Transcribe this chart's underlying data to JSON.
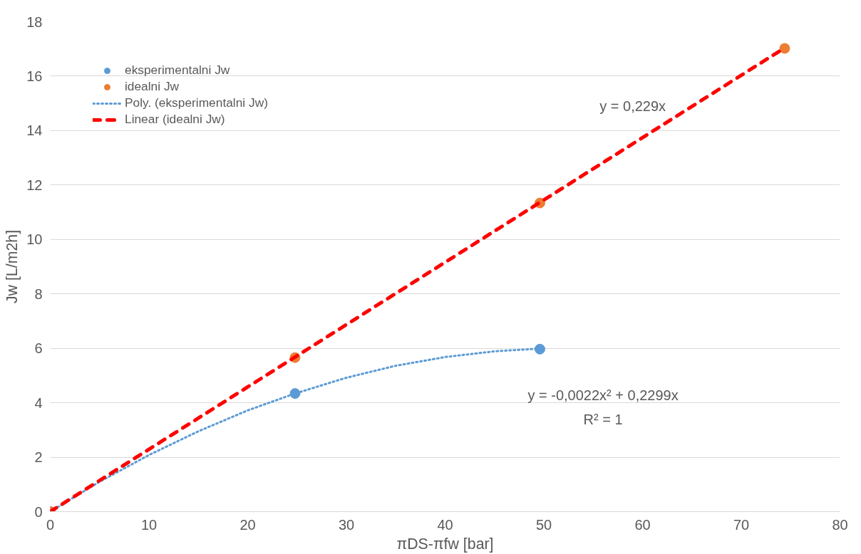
{
  "chart_data": {
    "type": "scatter",
    "xlabel": "πDS-πfw [bar]",
    "ylabel": "Jw [L/m2h]",
    "xlim": [
      0,
      80
    ],
    "xticks": [
      0,
      10,
      20,
      30,
      40,
      50,
      60,
      70,
      80
    ],
    "ylim": [
      0,
      18
    ],
    "yticks": [
      0,
      2,
      4,
      6,
      8,
      10,
      12,
      14,
      16,
      18
    ],
    "grid": "y",
    "legend": "top left",
    "series": [
      {
        "name": "eksperimentalni Jw",
        "marker": "circle",
        "color": "#5b9bd5",
        "x": [
          0,
          24.8,
          49.6
        ],
        "values": [
          0,
          4.34,
          5.97
        ]
      },
      {
        "name": "idealni Jw",
        "marker": "circle",
        "color": "#ed7d31",
        "x": [
          0,
          24.8,
          49.6,
          74.4
        ],
        "values": [
          0,
          5.66,
          11.34,
          17.02
        ]
      },
      {
        "name": "Poly. (eksperimentalni Jw)",
        "type": "line",
        "line_style": "dotted",
        "color": "#5b9bd5",
        "x": [
          0,
          5,
          10,
          15,
          20,
          24.8,
          30,
          35,
          40,
          45,
          49.6
        ],
        "values": [
          0,
          1.1,
          2.08,
          2.95,
          3.72,
          4.34,
          4.92,
          5.36,
          5.68,
          5.89,
          5.99
        ]
      },
      {
        "name": "Linear (idealni Jw)",
        "type": "line",
        "line_style": "dashed",
        "color": "#ff0000",
        "x": [
          0,
          74.4
        ],
        "values": [
          0,
          17.04
        ]
      }
    ],
    "annotations": [
      "y = 0,229x",
      "y = -0,0022x² + 0,2299x",
      "R² = 1"
    ]
  }
}
